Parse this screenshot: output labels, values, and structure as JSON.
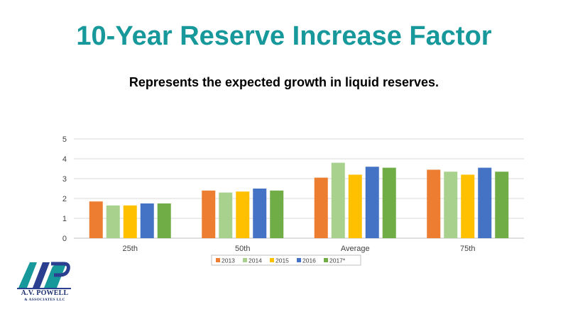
{
  "title": "10-Year Reserve Increase Factor",
  "subtitle": "Represents the expected growth in liquid reserves.",
  "logo": {
    "name": "A.V. POWELL",
    "sub": "& ASSOCIATES LLC",
    "monogram": "AVP"
  },
  "chart_data": {
    "type": "bar",
    "title": "",
    "xlabel": "",
    "ylabel": "",
    "categories": [
      "25th",
      "50th",
      "Average",
      "75th"
    ],
    "ylim": [
      0,
      5
    ],
    "yticks": [
      0,
      1,
      2,
      3,
      4,
      5
    ],
    "grid": true,
    "legend_position": "bottom",
    "series": [
      {
        "name": "2013",
        "color": "#ed7d31",
        "values": [
          1.85,
          2.4,
          3.05,
          3.45
        ]
      },
      {
        "name": "2014",
        "color": "#a9d18e",
        "values": [
          1.65,
          2.3,
          3.8,
          3.35
        ]
      },
      {
        "name": "2015",
        "color": "#ffc000",
        "values": [
          1.65,
          2.35,
          3.2,
          3.2
        ]
      },
      {
        "name": "2016",
        "color": "#4472c4",
        "values": [
          1.75,
          2.5,
          3.6,
          3.55
        ]
      },
      {
        "name": "2017*",
        "color": "#70ad47",
        "values": [
          1.75,
          2.4,
          3.55,
          3.35
        ]
      }
    ]
  }
}
